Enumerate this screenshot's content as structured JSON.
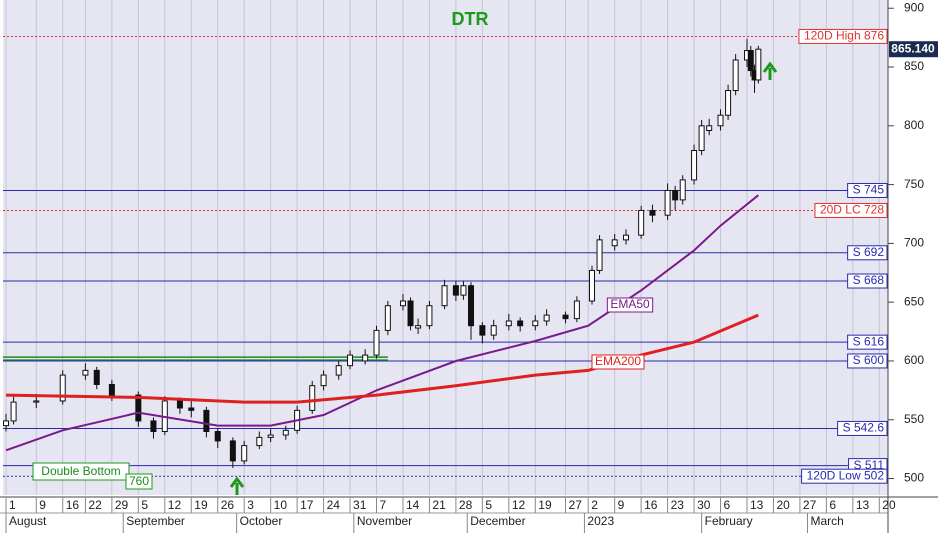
{
  "chart_data": {
    "type": "candlestick",
    "title": "DTR",
    "xlim": [
      -0.8,
      233.3
    ],
    "ylim": [
      486,
      907
    ],
    "yticks": [
      500,
      550,
      600,
      650,
      700,
      750,
      800,
      850,
      900
    ],
    "grid": true,
    "xticks": [
      {
        "value": 0,
        "label": "1"
      },
      {
        "value": 8,
        "label": "9"
      },
      {
        "value": 15,
        "label": "16"
      },
      {
        "value": 21,
        "label": "22"
      },
      {
        "value": 28,
        "label": "29"
      },
      {
        "value": 35,
        "label": "5"
      },
      {
        "value": 42,
        "label": "12"
      },
      {
        "value": 49,
        "label": "19"
      },
      {
        "value": 56,
        "label": "26"
      },
      {
        "value": 63,
        "label": "3"
      },
      {
        "value": 70,
        "label": "10"
      },
      {
        "value": 77,
        "label": "17"
      },
      {
        "value": 84,
        "label": "24"
      },
      {
        "value": 91,
        "label": "31"
      },
      {
        "value": 98,
        "label": "7"
      },
      {
        "value": 105,
        "label": "14"
      },
      {
        "value": 112,
        "label": "21"
      },
      {
        "value": 119,
        "label": "28"
      },
      {
        "value": 126,
        "label": "5"
      },
      {
        "value": 133,
        "label": "12"
      },
      {
        "value": 140,
        "label": "19"
      },
      {
        "value": 148,
        "label": "27"
      },
      {
        "value": 154,
        "label": "2"
      },
      {
        "value": 161,
        "label": "9"
      },
      {
        "value": 168,
        "label": "16"
      },
      {
        "value": 175,
        "label": "23"
      },
      {
        "value": 182,
        "label": "30"
      },
      {
        "value": 189,
        "label": "6"
      },
      {
        "value": 196,
        "label": "13"
      },
      {
        "value": 203,
        "label": "20"
      },
      {
        "value": 210,
        "label": "27"
      },
      {
        "value": 217,
        "label": "6"
      },
      {
        "value": 224,
        "label": "13"
      },
      {
        "value": 231,
        "label": "20"
      }
    ],
    "month_ticks": [
      {
        "value": 0,
        "label": "August"
      },
      {
        "value": 31,
        "label": "September"
      },
      {
        "value": 61,
        "label": "October"
      },
      {
        "value": 92,
        "label": "November"
      },
      {
        "value": 122,
        "label": "December"
      },
      {
        "value": 153,
        "label": "2023"
      },
      {
        "value": 184,
        "label": "February"
      },
      {
        "value": 212,
        "label": "March"
      }
    ],
    "x": [
      0,
      2,
      8,
      15,
      21,
      24,
      28,
      35,
      39,
      42,
      46,
      49,
      53,
      56,
      60,
      63,
      67,
      70,
      74,
      77,
      81,
      84,
      88,
      91,
      95,
      98,
      101,
      105,
      107,
      109,
      112,
      116,
      119,
      121,
      123,
      126,
      129,
      133,
      136,
      140,
      143,
      148,
      151,
      155,
      157,
      161,
      164,
      168,
      171,
      175,
      177,
      179,
      182,
      184,
      186,
      189,
      191,
      193,
      196,
      197,
      198,
      199
    ],
    "open": [
      545,
      549,
      565,
      566,
      588,
      592,
      580,
      571,
      549,
      540,
      566,
      560,
      558,
      540,
      532,
      515,
      528,
      535,
      537,
      541,
      558,
      579,
      588,
      596,
      600,
      605,
      626,
      647,
      651,
      628,
      630,
      647,
      664,
      656,
      664,
      630,
      622,
      630,
      634,
      630,
      634,
      639,
      636,
      651,
      677,
      698,
      703,
      707,
      728,
      724,
      745,
      737,
      754,
      779,
      796,
      800,
      809,
      830,
      856,
      864,
      847,
      839
    ],
    "high": [
      555,
      570,
      572,
      592,
      598,
      595,
      584,
      574,
      552,
      570,
      569,
      566,
      561,
      543,
      535,
      532,
      540,
      542,
      545,
      562,
      583,
      592,
      600,
      609,
      610,
      630,
      651,
      657,
      654,
      636,
      651,
      669,
      668,
      668,
      667,
      633,
      635,
      640,
      637,
      639,
      644,
      642,
      655,
      681,
      707,
      708,
      712,
      732,
      733,
      751,
      749,
      758,
      784,
      805,
      806,
      814,
      835,
      861,
      874,
      868,
      852,
      868
    ],
    "low": [
      540,
      546,
      560,
      563,
      584,
      576,
      566,
      544,
      534,
      537,
      555,
      552,
      535,
      526,
      509,
      512,
      525,
      531,
      533,
      538,
      555,
      575,
      584,
      593,
      597,
      602,
      622,
      643,
      626,
      623,
      627,
      644,
      651,
      652,
      618,
      615,
      618,
      626,
      625,
      626,
      630,
      632,
      633,
      648,
      674,
      694,
      699,
      704,
      718,
      720,
      728,
      733,
      750,
      775,
      792,
      796,
      805,
      826,
      850,
      842,
      828,
      836
    ],
    "close": [
      549,
      565,
      566,
      588,
      592,
      580,
      571,
      549,
      540,
      566,
      560,
      558,
      540,
      532,
      515,
      528,
      535,
      537,
      541,
      558,
      579,
      588,
      596,
      605,
      605,
      626,
      647,
      651,
      630,
      630,
      647,
      664,
      656,
      664,
      630,
      622,
      630,
      634,
      630,
      634,
      639,
      636,
      651,
      677,
      703,
      703,
      707,
      728,
      724,
      745,
      737,
      754,
      779,
      800,
      800,
      809,
      830,
      856,
      864,
      847,
      839,
      865.14
    ],
    "series": [
      {
        "name": "EMA50",
        "color": "#7a1a8a",
        "x": [
          0,
          15,
          35,
          56,
          70,
          84,
          98,
          119,
          140,
          154,
          168,
          182,
          189,
          199
        ],
        "values": [
          524,
          541,
          556,
          545,
          545,
          554,
          575,
          600,
          617,
          630,
          660,
          694,
          715,
          741
        ]
      },
      {
        "name": "EMA200",
        "color": "#e02020",
        "x": [
          0,
          35,
          63,
          77,
          98,
          119,
          140,
          154,
          168,
          182,
          199
        ],
        "values": [
          571,
          569,
          565,
          565,
          571,
          579,
          588,
          592,
          605,
          616,
          639
        ]
      }
    ],
    "levels": [
      {
        "value": 876,
        "label": "120D High 876",
        "color": "#e03030",
        "style": "dotted"
      },
      {
        "value": 745,
        "label": "S 745",
        "color": "#2a2ab0",
        "style": "solid"
      },
      {
        "value": 728,
        "label": "20D LC 728",
        "color": "#e03030",
        "style": "dotted"
      },
      {
        "value": 692,
        "label": "S 692",
        "color": "#2a2ab0",
        "style": "solid"
      },
      {
        "value": 668,
        "label": "S 668",
        "color": "#2a2ab0",
        "style": "solid"
      },
      {
        "value": 616,
        "label": "S 616",
        "color": "#2a2ab0",
        "style": "solid"
      },
      {
        "value": 600,
        "label": "S 600",
        "color": "#2a2ab0",
        "style": "solid"
      },
      {
        "value": 542.6,
        "label": "S 542.6",
        "color": "#2a2ab0",
        "style": "solid"
      },
      {
        "value": 511,
        "label": "S 511",
        "color": "#2a2ab0",
        "style": "solid"
      },
      {
        "value": 502,
        "label": "120D Low 502",
        "color": "#2a2ab0",
        "style": "dotted"
      }
    ],
    "support_line": {
      "value": 602,
      "x": [
        -0.8,
        101
      ],
      "color": "#1a8a1a"
    },
    "last_price": {
      "value": 865.14,
      "label": "865.140"
    },
    "annotations": [
      "Double Bottom",
      "760"
    ]
  }
}
